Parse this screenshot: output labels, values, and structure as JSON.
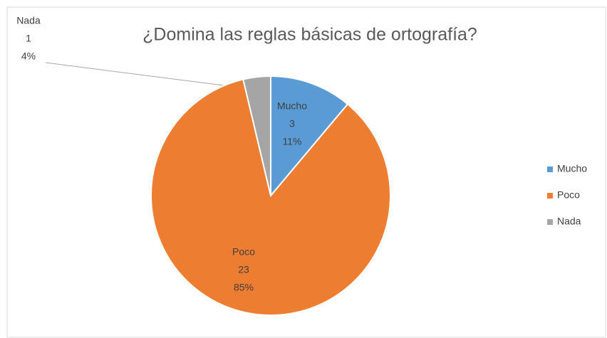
{
  "chart_data": {
    "type": "pie",
    "title": "¿Domina las reglas básicas de ortografía?",
    "categories": [
      "Mucho",
      "Poco",
      "Nada"
    ],
    "values": [
      3,
      23,
      1
    ],
    "percent_labels": [
      "11%",
      "85%",
      "4%"
    ],
    "colors": [
      "#5b9bd5",
      "#ed7d31",
      "#a5a5a5"
    ],
    "legend": "right"
  }
}
